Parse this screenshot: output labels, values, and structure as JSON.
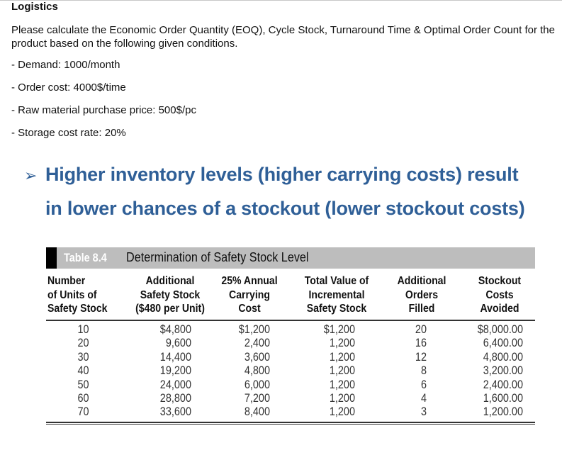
{
  "question": {
    "title": "Logistics",
    "prompt": "Please calculate the Economic Order Quantity (EOQ), Cycle Stock, Turnaround Time & Optimal Order Count for the product based on the following given conditions.",
    "conditions": [
      "- Demand: 1000/month",
      "- Order cost: 4000$/time",
      "- Raw material purchase price: 500$/pc",
      "- Storage cost rate: 20%"
    ]
  },
  "slide": {
    "bullet_icon": "arrowhead-bullet",
    "heading_line1": "Higher inventory levels (higher carrying costs) result",
    "heading_line2": "in lower chances of a stockout (lower stockout costs)",
    "accent_color": "#2f5f97"
  },
  "table": {
    "number": "Table 8.4",
    "caption": "Determination of Safety Stock Level",
    "headers": [
      [
        "Number",
        "of Units of",
        "Safety Stock"
      ],
      [
        "Additional",
        "Safety Stock",
        "($480 per Unit)"
      ],
      [
        "25% Annual",
        "Carrying",
        "Cost"
      ],
      [
        "Total Value of",
        "Incremental",
        "Safety Stock"
      ],
      [
        "Additional",
        "Orders",
        "Filled"
      ],
      [
        "Stockout",
        "Costs",
        "Avoided"
      ]
    ],
    "columns": [
      [
        "10",
        "20",
        "30",
        "40",
        "50",
        "60",
        "70"
      ],
      [
        "$4,800",
        "9,600",
        "14,400",
        "19,200",
        "24,000",
        "28,800",
        "33,600"
      ],
      [
        "$1,200",
        "2,400",
        "3,600",
        "4,800",
        "6,000",
        "7,200",
        "8,400"
      ],
      [
        "$1,200",
        "1,200",
        "1,200",
        "1,200",
        "1,200",
        "1,200",
        "1,200"
      ],
      [
        "20",
        "16",
        "12",
        "8",
        "6",
        "4",
        "3"
      ],
      [
        "$8,000.00",
        "6,400.00",
        "4,800.00",
        "3,200.00",
        "2,400.00",
        "1,600.00",
        "1,200.00"
      ]
    ]
  }
}
